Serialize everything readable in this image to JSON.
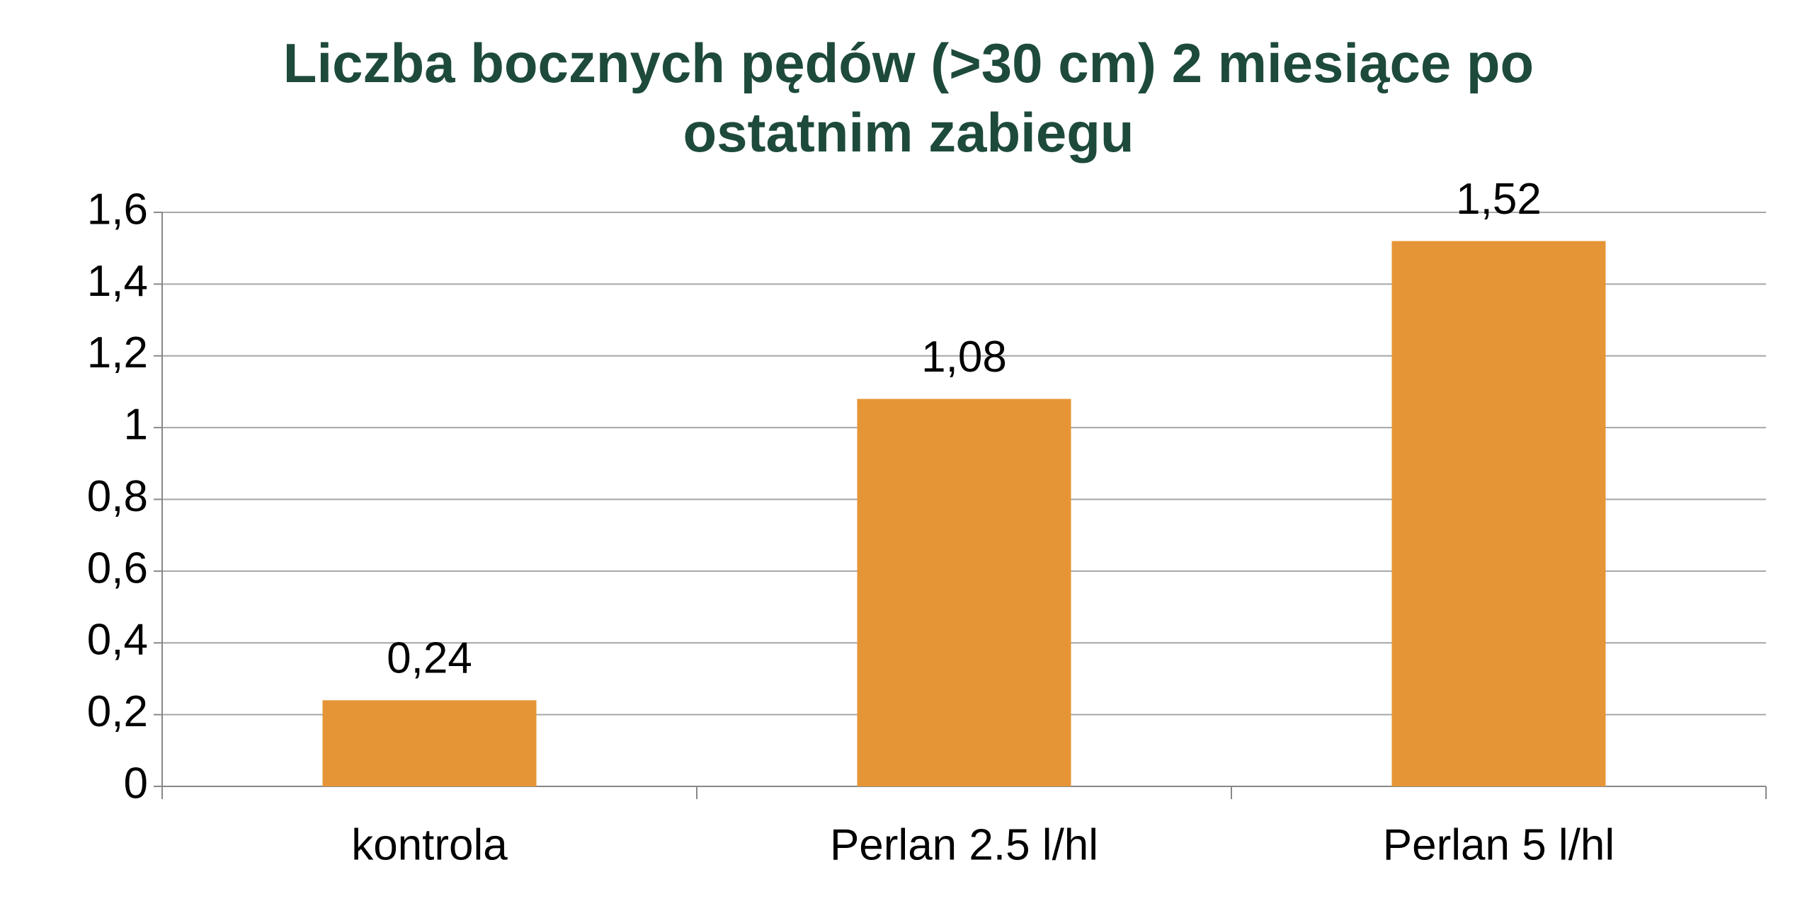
{
  "chart_data": {
    "type": "bar",
    "title": "Liczba bocznych pędów (>30 cm) 2 miesiące po ostatnim zabiegu",
    "categories": [
      "kontrola",
      "Perlan 2.5 l/hl",
      "Perlan 5 l/hl"
    ],
    "values": [
      0.24,
      1.08,
      1.52
    ],
    "value_labels": [
      "0,24",
      "1,08",
      "1,52"
    ],
    "color": "#e69536",
    "ylim": [
      0,
      1.6
    ],
    "yticks": [
      0,
      {
        "value": 0.2,
        "label": "0,2"
      },
      {
        "value": 0.4,
        "label": "0,4"
      },
      {
        "value": 0.6,
        "label": "0,6"
      },
      {
        "value": 0.8,
        "label": "0,8"
      },
      1,
      {
        "value": 1.2,
        "label": "1,2"
      },
      {
        "value": 1.4,
        "label": "1,4"
      },
      {
        "value": 1.6,
        "label": "1,6"
      }
    ],
    "grid": true
  }
}
